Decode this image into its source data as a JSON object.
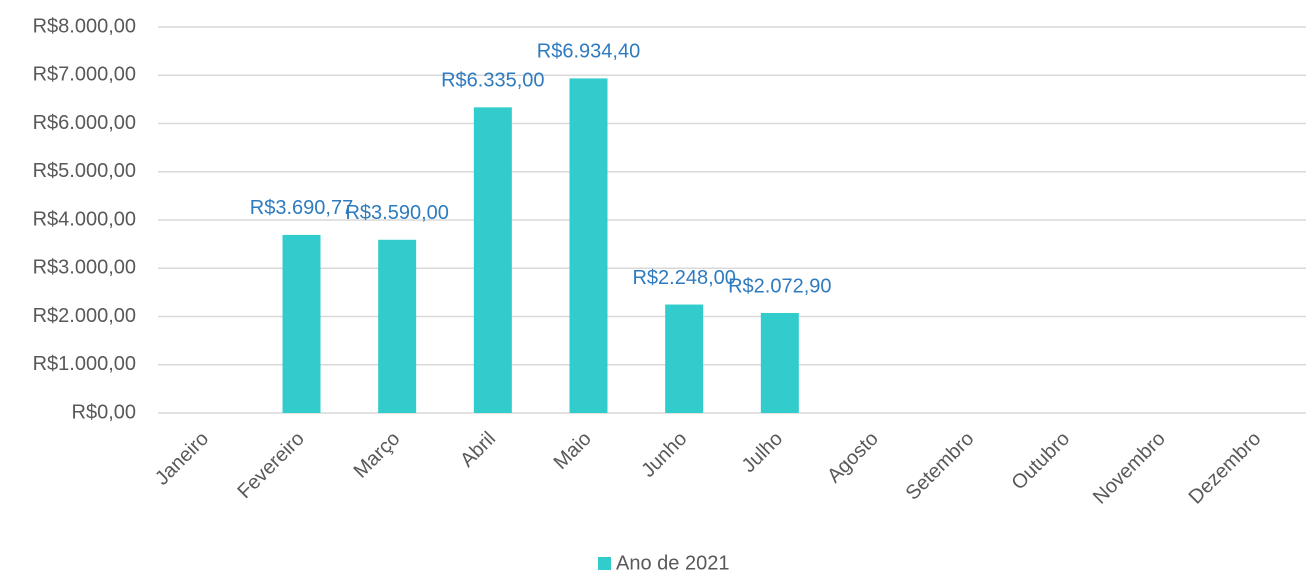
{
  "chart_data": {
    "type": "bar",
    "categories": [
      "Janeiro",
      "Fevereiro",
      "Março",
      "Abril",
      "Maio",
      "Junho",
      "Julho",
      "Agosto",
      "Setembro",
      "Outubro",
      "Novembro",
      "Dezembro"
    ],
    "series": [
      {
        "name": "Ano de 2021",
        "color": "#33cccc",
        "values": [
          null,
          3690.77,
          3590,
          6335,
          6934.4,
          2248,
          2072.9,
          null,
          null,
          null,
          null,
          null
        ],
        "value_labels": [
          null,
          "R$3.690,77",
          "R$3.590,00",
          "R$6.335,00",
          "R$6.934,40",
          "R$2.248,00",
          "R$2.072,90",
          null,
          null,
          null,
          null,
          null
        ]
      }
    ],
    "ylim": [
      0,
      8000
    ],
    "yticks": [
      {
        "value": 0,
        "label": "R$0,00"
      },
      {
        "value": 1000,
        "label": "R$1.000,00"
      },
      {
        "value": 2000,
        "label": "R$2.000,00"
      },
      {
        "value": 3000,
        "label": "R$3.000,00"
      },
      {
        "value": 4000,
        "label": "R$4.000,00"
      },
      {
        "value": 5000,
        "label": "R$5.000,00"
      },
      {
        "value": 6000,
        "label": "R$6.000,00"
      },
      {
        "value": 7000,
        "label": "R$7.000,00"
      },
      {
        "value": 8000,
        "label": "R$8.000,00"
      }
    ],
    "grid": true,
    "legend": "bottom"
  }
}
